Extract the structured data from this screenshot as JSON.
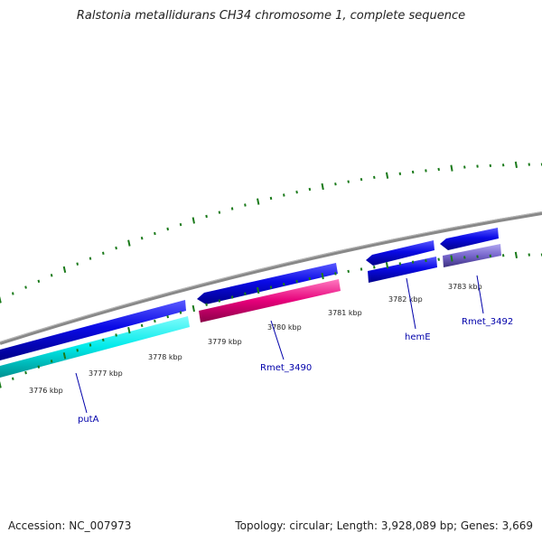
{
  "title": "Ralstonia metallidurans CH34 chromosome 1, complete sequence",
  "accession": "Accession: NC_007973",
  "summary": "Topology: circular; Length: 3,928,089 bp; Genes: 3,669",
  "ticks": [
    {
      "label": "3776 kbp"
    },
    {
      "label": "3777 kbp"
    },
    {
      "label": "3778 kbp"
    },
    {
      "label": "3779 kbp"
    },
    {
      "label": "3780 kbp"
    },
    {
      "label": "3781 kbp"
    },
    {
      "label": "3782 kbp"
    },
    {
      "label": "3783 kbp"
    }
  ],
  "genes": [
    {
      "name": "putA",
      "color": "#00e5e5"
    },
    {
      "name": "Rmet_3490",
      "color": "#e6007a"
    },
    {
      "name": "hemE",
      "color": "#0000dd"
    },
    {
      "name": "Rmet_3492",
      "color": "#7766cc"
    }
  ],
  "colors": {
    "backbone": "#888888",
    "forward_cds": "#0a0ae6",
    "tick_marks": "#1a7a1a"
  }
}
